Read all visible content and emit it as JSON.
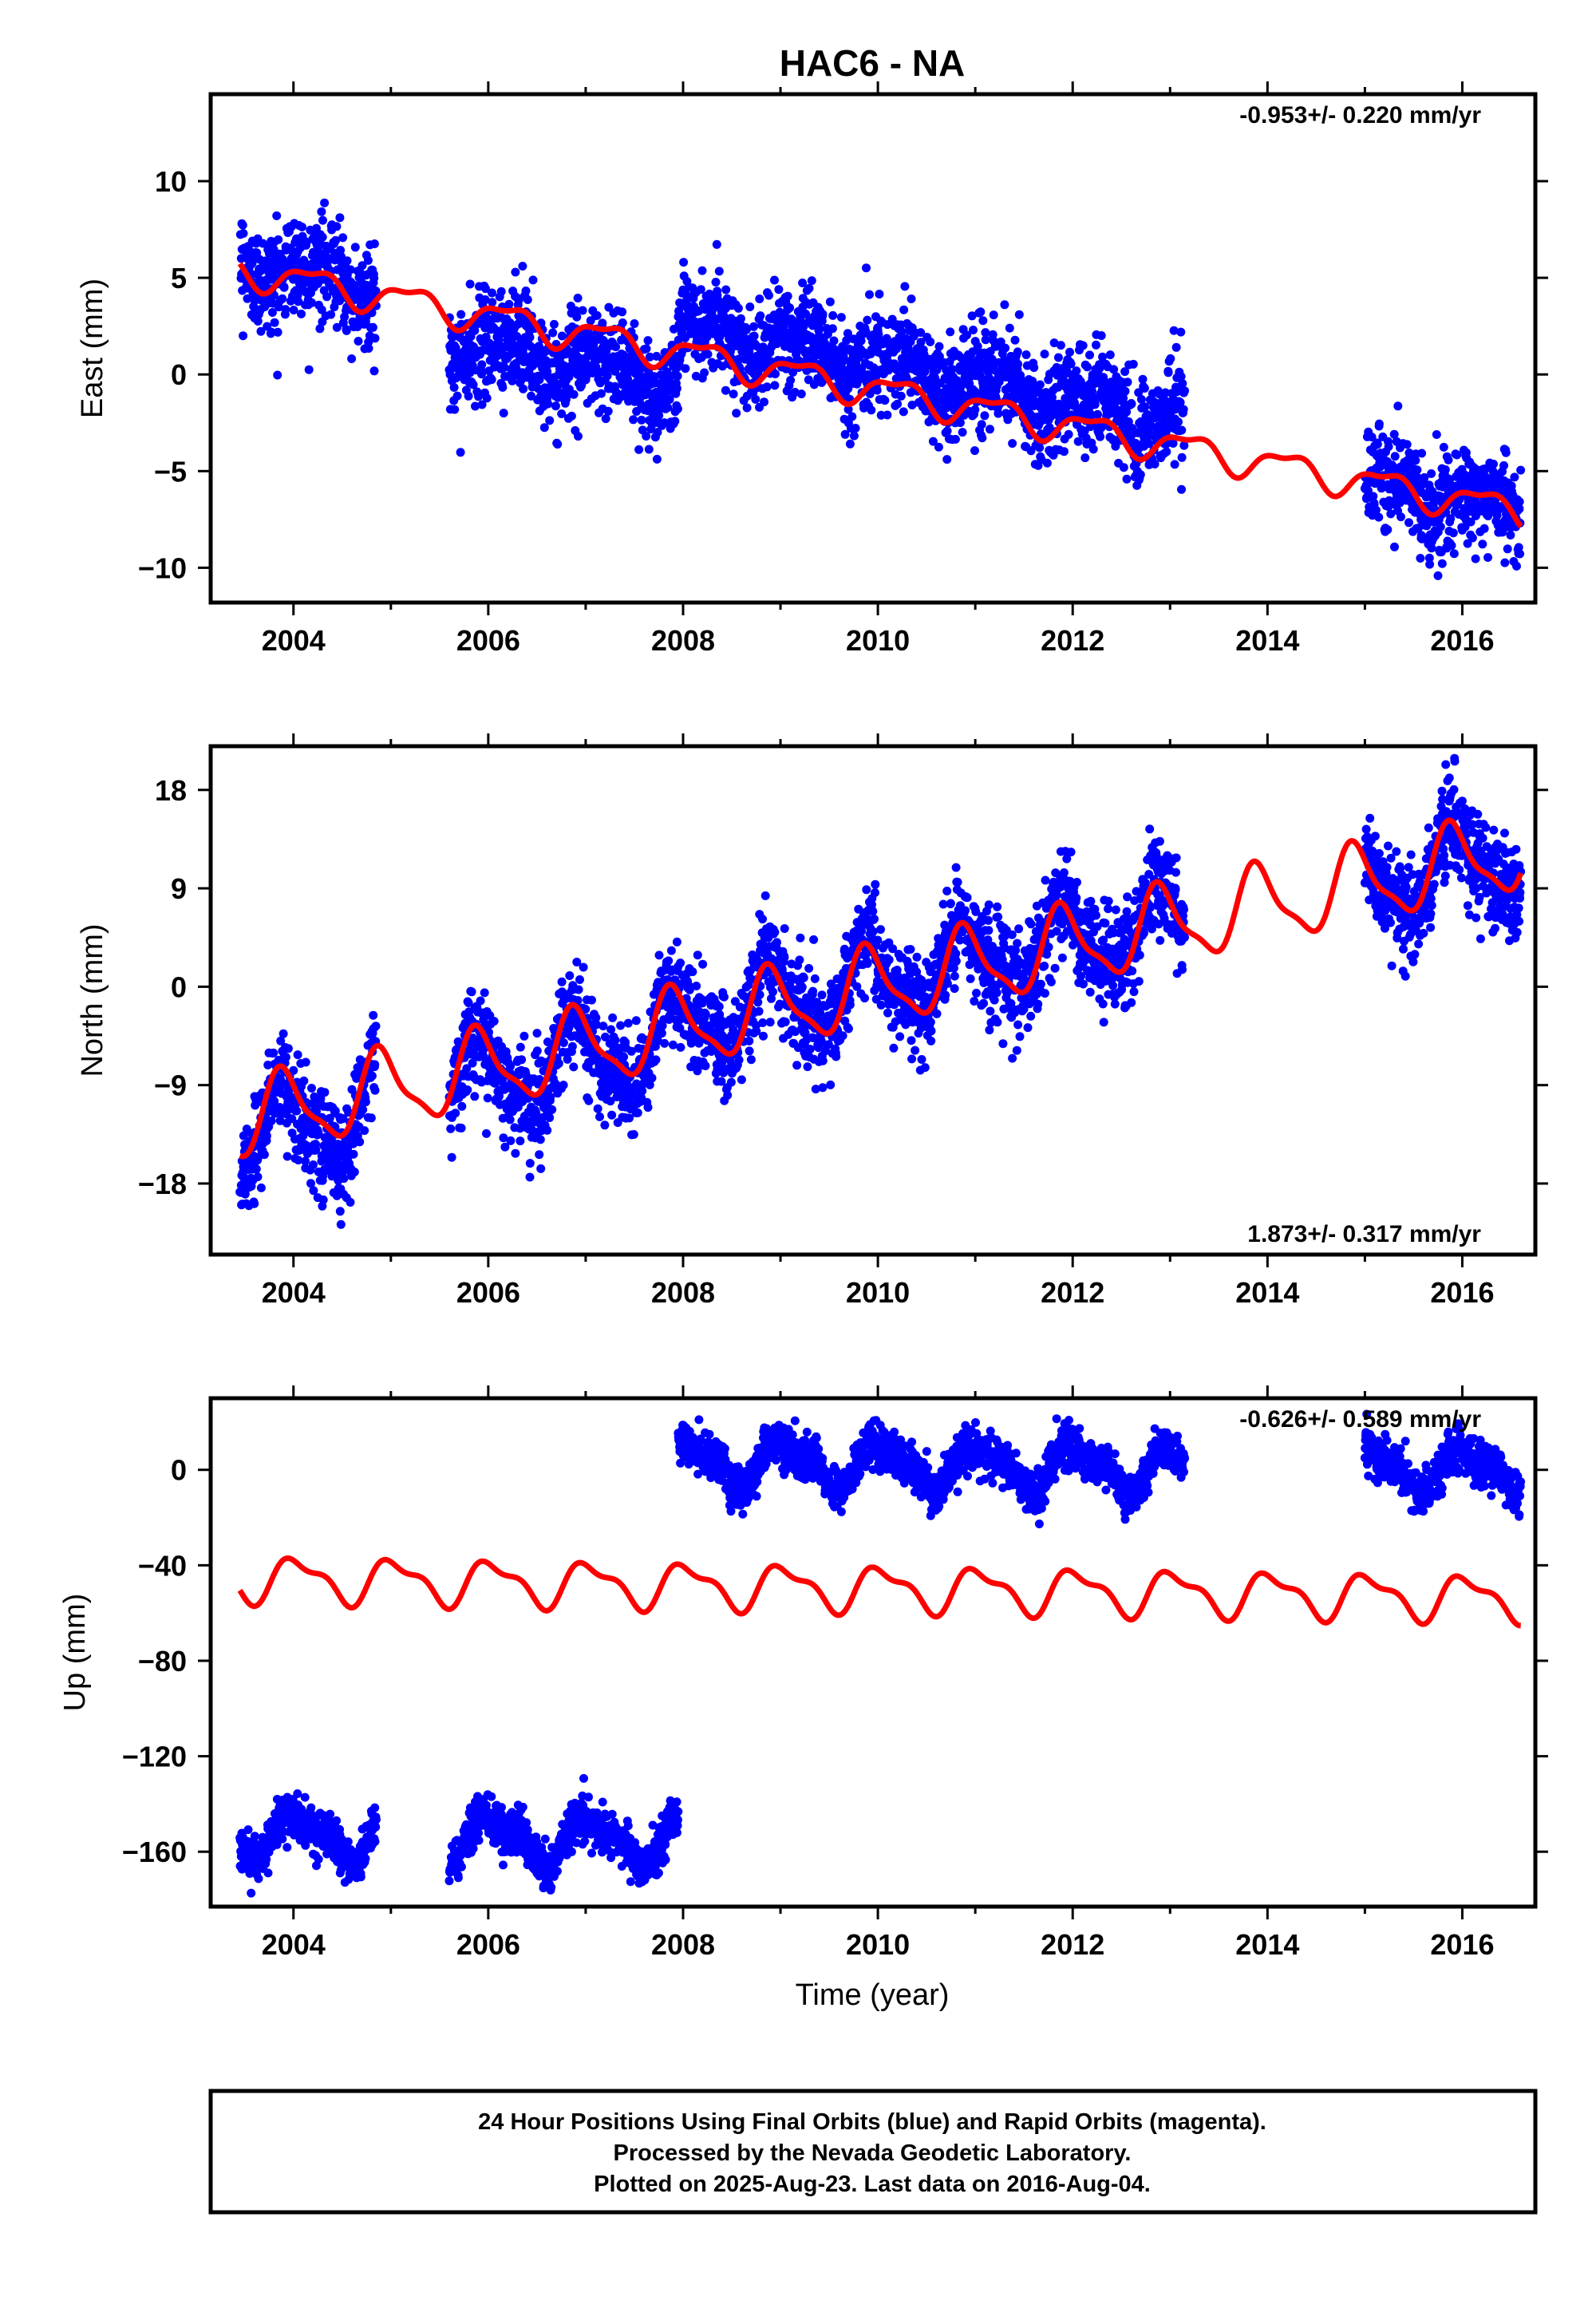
{
  "title": "HAC6 - NA",
  "colors": {
    "data": "#0000ff",
    "model": "#ff0000",
    "frame": "#000000"
  },
  "xaxis": {
    "label": "Time (year)",
    "range": [
      2003.15,
      2016.75
    ],
    "ticks": [
      2004,
      2006,
      2008,
      2010,
      2012,
      2014,
      2016
    ]
  },
  "chart_data": [
    {
      "type": "scatter",
      "component": "east",
      "ylabel": "East (mm)",
      "ylim": [
        -11.8,
        14.5
      ],
      "yticks": [
        10,
        5,
        0,
        -5,
        -10
      ],
      "ytick_labels": [
        "10",
        "5",
        "0",
        "−5",
        "−10"
      ],
      "rate_label": "-0.953+/- 0.220 mm/yr",
      "rate_position": "top-right",
      "series": [
        {
          "name": "",
          "kind": "daily positions",
          "color": "#0000ff"
        },
        {
          "name": "",
          "kind": "model fit",
          "color": "#ff0000"
        }
      ],
      "data_segments": [
        {
          "start": 2003.45,
          "end": 2004.85,
          "offset": 0.5,
          "spread": 1.3
        },
        {
          "start": 2005.6,
          "end": 2007.95,
          "offset": -1.6,
          "spread": 1.3
        },
        {
          "start": 2007.95,
          "end": 2013.15,
          "offset": 1.3,
          "spread": 1.3
        },
        {
          "start": 2015.0,
          "end": 2016.6,
          "offset": 0.0,
          "spread": 1.3
        }
      ],
      "model": {
        "a0": 4.92,
        "t0": 2004.0,
        "rate": -0.953,
        "amp1": 0.75,
        "phase1": 0.95,
        "amp2": 0.3,
        "phase2": 0.3,
        "start": 2003.45,
        "end": 2016.6
      }
    },
    {
      "type": "scatter",
      "component": "north",
      "ylabel": "North (mm)",
      "ylim": [
        -24.5,
        22
      ],
      "yticks": [
        18,
        9,
        0,
        -9,
        -18
      ],
      "ytick_labels": [
        "18",
        "9",
        "0",
        "−9",
        "−18"
      ],
      "rate_label": "1.873+/- 0.317 mm/yr",
      "rate_position": "bottom-right",
      "series": [
        {
          "name": "",
          "kind": "daily positions",
          "color": "#0000ff"
        },
        {
          "name": "",
          "kind": "model fit",
          "color": "#ff0000"
        }
      ],
      "data_segments": [
        {
          "start": 2003.45,
          "end": 2004.85,
          "offset": -1.5,
          "spread": 2.2
        },
        {
          "start": 2005.6,
          "end": 2007.95,
          "offset": -1.0,
          "spread": 2.2
        },
        {
          "start": 2007.95,
          "end": 2013.15,
          "offset": 0.5,
          "spread": 2.2
        },
        {
          "start": 2015.0,
          "end": 2016.6,
          "offset": 0.0,
          "spread": 2.2
        }
      ],
      "model": {
        "a0": -11.2,
        "t0": 2004.0,
        "rate": 1.873,
        "amp1": 3.4,
        "phase1": 0.65,
        "amp2": 1.0,
        "phase2": 0.2,
        "start": 2003.45,
        "end": 2016.6
      }
    },
    {
      "type": "scatter",
      "component": "up",
      "ylabel": "Up (mm)",
      "ylim": [
        -183,
        30
      ],
      "yticks": [
        0,
        -40,
        -80,
        -120,
        -160
      ],
      "ytick_labels": [
        "0",
        "−40",
        "−80",
        "−120",
        "−160"
      ],
      "rate_label": "-0.626+/- 0.589 mm/yr",
      "rate_position": "top-right",
      "series": [
        {
          "name": "",
          "kind": "daily positions",
          "color": "#0000ff"
        },
        {
          "name": "",
          "kind": "model fit",
          "color": "#ff0000"
        }
      ],
      "data_segments": [
        {
          "start": 2003.45,
          "end": 2004.85,
          "offset": -107,
          "spread": 4.5
        },
        {
          "start": 2005.6,
          "end": 2007.95,
          "offset": -107,
          "spread": 4.5
        },
        {
          "start": 2007.95,
          "end": 2013.15,
          "offset": 52,
          "spread": 4.5
        },
        {
          "start": 2015.0,
          "end": 2016.6,
          "offset": 54,
          "spread": 4.5
        }
      ],
      "model": {
        "a0": -46.0,
        "t0": 2004.0,
        "rate": -0.626,
        "amp1": 8.5,
        "phase1": 0.8,
        "amp2": 3.5,
        "phase2": 0.25,
        "start": 2003.45,
        "end": 2016.6
      }
    }
  ],
  "footer": {
    "line1": "24 Hour Positions Using Final Orbits (blue) and Rapid Orbits (magenta).",
    "line2": "Processed by the Nevada Geodetic Laboratory.",
    "line3": "Plotted on 2025-Aug-23. Last data on 2016-Aug-04."
  }
}
